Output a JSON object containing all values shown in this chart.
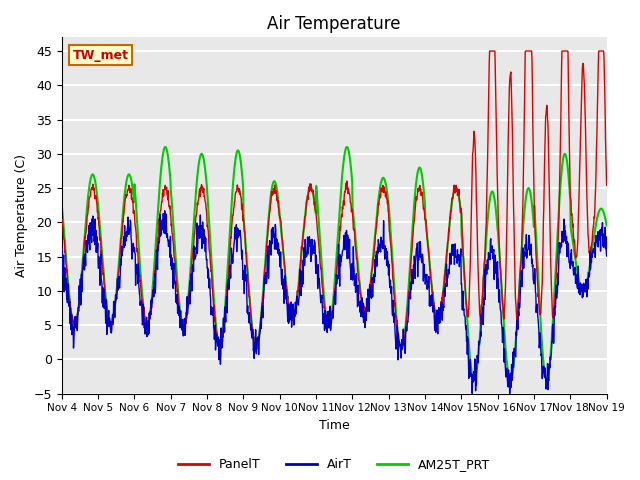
{
  "title": "Air Temperature",
  "ylabel": "Air Temperature (C)",
  "xlabel": "Time",
  "ylim": [
    -5,
    47
  ],
  "annotation_text": "TW_met",
  "annotation_bbox": {
    "facecolor": "#ffffcc",
    "edgecolor": "#cc6600",
    "boxstyle": "square,pad=0.3"
  },
  "annotation_color": "#cc0000",
  "background_color": "#e8e8e8",
  "grid_color": "white",
  "line_colors": {
    "PanelT": "#dd0000",
    "AirT": "#0000cc",
    "AM25T_PRT": "#00cc00"
  },
  "line_widths": {
    "PanelT": 1.0,
    "AirT": 1.0,
    "AM25T_PRT": 1.5
  },
  "x_tick_labels": [
    "Nov 4",
    "Nov 5",
    "Nov 6",
    "Nov 7",
    "Nov 8",
    "Nov 9",
    "Nov 10",
    "Nov 11",
    "Nov 12",
    "Nov 13",
    "Nov 14",
    "Nov 15",
    "Nov 16",
    "Nov 17",
    "Nov 18",
    "Nov 19"
  ],
  "fig_size": [
    6.4,
    4.8
  ],
  "dpi": 100
}
